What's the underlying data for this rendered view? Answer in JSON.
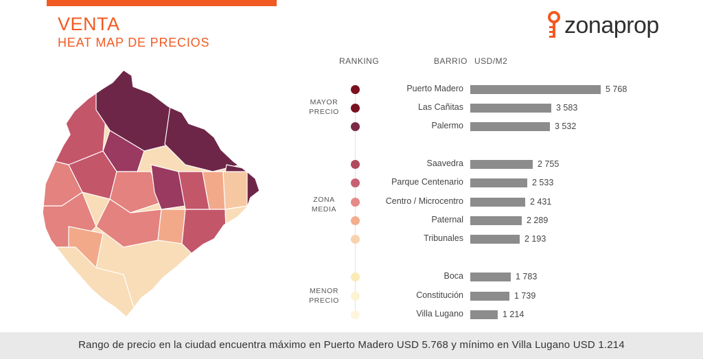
{
  "header": {
    "title": "VENTA",
    "subtitle": "HEAT MAP DE PRECIOS",
    "logo_text": "zonaprop",
    "accent_color": "#f15a22"
  },
  "columns": {
    "ranking": "RANKING",
    "barrio": "BARRIO",
    "usd_m2": "USD/M2"
  },
  "groups": {
    "high": [
      "MAYOR",
      "PRECIO"
    ],
    "mid": [
      "ZONA",
      "MEDIA"
    ],
    "low": [
      "MENOR",
      "PRECIO"
    ]
  },
  "chart_data": {
    "type": "bar",
    "orientation": "horizontal",
    "categories": [
      "Puerto Madero",
      "Las Cañitas",
      "Palermo",
      "Saavedra",
      "Parque Centenario",
      "Centro / Microcentro",
      "Paternal",
      "Tribunales",
      "Boca",
      "Constitución",
      "Villa Lugano"
    ],
    "values": [
      5768,
      3583,
      3532,
      2755,
      2533,
      2431,
      2289,
      2193,
      1783,
      1739,
      1214
    ],
    "value_labels": [
      "5 768",
      "3 583",
      "3 532",
      "2 755",
      "2 533",
      "2 431",
      "2 289",
      "2 193",
      "1 783",
      "1 739",
      "1 214"
    ],
    "dot_colors": [
      "#7a1020",
      "#7a1020",
      "#7b2a48",
      "#b04a5c",
      "#c85f72",
      "#e58a86",
      "#f4ad8e",
      "#f8d2ae",
      "#faeab8",
      "#fcf3d2",
      "#fdf6dd"
    ],
    "bar_color": "#8c8c8c"
  },
  "map_colors": {
    "dark": "#6e2648",
    "mid_dark": "#9a3a60",
    "mid": "#c4566a",
    "salmon": "#e3827e",
    "light_salmon": "#f2a98a",
    "peach": "#f6c8a2",
    "cream": "#f8ddb8"
  },
  "footer": {
    "text": "Rango de precio en la ciudad encuentra máximo en Puerto Madero USD 5.768 y mínimo en Villa Lugano USD 1.214"
  }
}
